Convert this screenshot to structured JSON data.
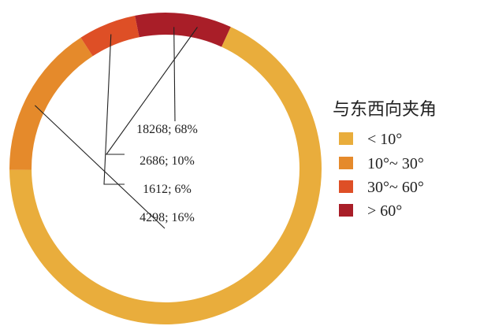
{
  "chart_data": {
    "type": "pie",
    "donut": true,
    "legend_title": "与东西向夹角",
    "legend_position": "right",
    "slices": [
      {
        "name": "< 10°",
        "value": 18268,
        "percent": 68,
        "label": "18268; 68%",
        "color": "#E9AD3C"
      },
      {
        "name": "10°~ 30°",
        "value": 4298,
        "percent": 16,
        "label": "4298; 16%",
        "color": "#E58A2B"
      },
      {
        "name": "30°~ 60°",
        "value": 1612,
        "percent": 6,
        "label": "1612; 6%",
        "color": "#DE4F26"
      },
      {
        "name": "> 60°",
        "value": 2686,
        "percent": 10,
        "label": "2686; 10%",
        "color": "#A91E28"
      }
    ]
  }
}
